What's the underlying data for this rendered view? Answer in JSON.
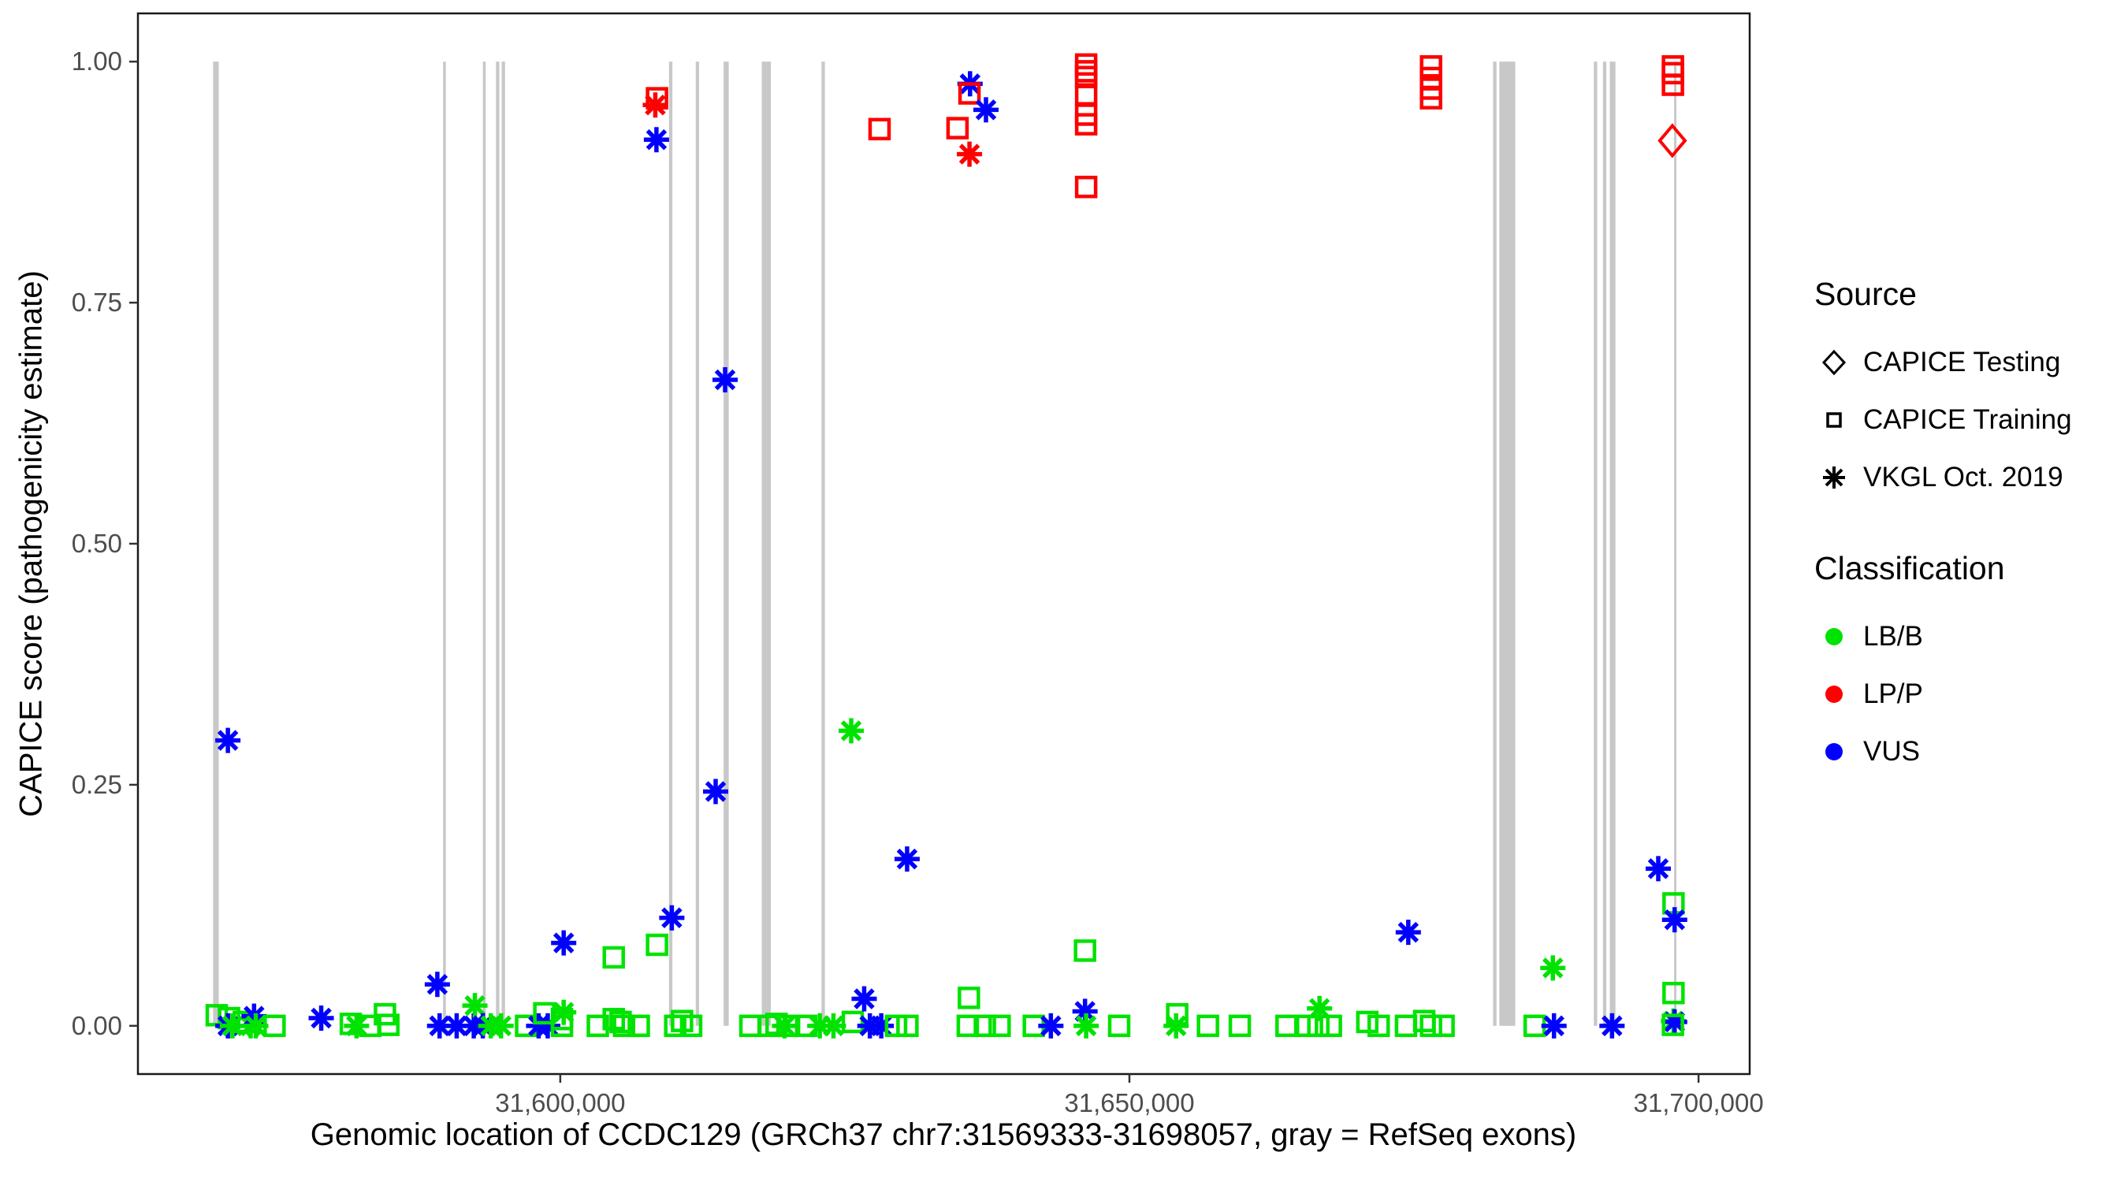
{
  "colors": {
    "lb_b": "#00E300",
    "lp_p": "#FF0000",
    "vus": "#0000FF",
    "exon": "#C8C8C8",
    "panel_border": "#1a1a1a",
    "tick_mark": "#333333",
    "tick_label": "#4D4D4D",
    "legend_key": "#000000"
  },
  "chart_data": {
    "type": "scatter",
    "title": "",
    "xlabel": "Genomic location of CCDC129 (GRCh37 chr7:31569333-31698057, gray = RefSeq exons)",
    "ylabel": "CAPICE score (pathogenicity estimate)",
    "x_domain": [
      31562897,
      31704493
    ],
    "y_domain": [
      -0.05,
      1.05
    ],
    "grid": "off",
    "x_ticks": [
      {
        "value": 31600000,
        "label": "31,600,000"
      },
      {
        "value": 31650000,
        "label": "31,650,000"
      },
      {
        "value": 31700000,
        "label": "31,700,000"
      }
    ],
    "y_ticks": [
      {
        "value": 0.0,
        "label": "0.00"
      },
      {
        "value": 0.25,
        "label": "0.25"
      },
      {
        "value": 0.5,
        "label": "0.50"
      },
      {
        "value": 0.75,
        "label": "0.75"
      },
      {
        "value": 1.0,
        "label": "1.00"
      }
    ],
    "legend": {
      "position": "right",
      "source_title": "Source",
      "source_items": [
        {
          "symbol": "diamond",
          "label": "CAPICE Testing"
        },
        {
          "symbol": "square",
          "label": "CAPICE Training"
        },
        {
          "symbol": "asterisk",
          "label": "VKGL Oct. 2019"
        }
      ],
      "classification_title": "Classification",
      "classification_items": [
        {
          "label": "LB/B",
          "color_key": "lb_b"
        },
        {
          "label": "LP/P",
          "color_key": "lp_p"
        },
        {
          "label": "VUS",
          "color_key": "vus"
        }
      ]
    },
    "exon_note": "gray vertical bars = RefSeq exons, drawn from score 0 to 1",
    "exons": [
      [
        31569500,
        31570000
      ],
      [
        31589700,
        31589950
      ],
      [
        31593200,
        31593450
      ],
      [
        31594350,
        31594650
      ],
      [
        31594850,
        31595150
      ],
      [
        31609550,
        31609850
      ],
      [
        31611900,
        31612200
      ],
      [
        31614350,
        31614800
      ],
      [
        31617700,
        31618500
      ],
      [
        31622950,
        31623250
      ],
      [
        31681950,
        31682250
      ],
      [
        31682500,
        31683900
      ],
      [
        31690800,
        31691100
      ],
      [
        31691600,
        31691900
      ],
      [
        31692200,
        31692700
      ],
      [
        31697850,
        31698057
      ]
    ],
    "point_fields": [
      "genomic_position",
      "capice_score",
      "source_code",
      "classification_code"
    ],
    "source_codes": {
      "T": "CAPICE Testing",
      "R": "CAPICE Training",
      "V": "VKGL Oct. 2019"
    },
    "class_codes": {
      "B": "LB/B",
      "P": "LP/P",
      "U": "VUS"
    },
    "marker_shapes": {
      "T": "open-diamond",
      "R": "open-square",
      "V": "asterisk"
    },
    "points": [
      [
        31608500,
        0.962,
        "R",
        "P"
      ],
      [
        31608350,
        0.955,
        "V",
        "P"
      ],
      [
        31608450,
        0.919,
        "V",
        "U"
      ],
      [
        31628050,
        0.93,
        "R",
        "P"
      ],
      [
        31634900,
        0.931,
        "R",
        "P"
      ],
      [
        31636000,
        0.977,
        "V",
        "U"
      ],
      [
        31635950,
        0.967,
        "R",
        "P"
      ],
      [
        31637400,
        0.95,
        "V",
        "U"
      ],
      [
        31635950,
        0.904,
        "V",
        "P"
      ],
      [
        31646200,
        0.997,
        "R",
        "P"
      ],
      [
        31646200,
        0.99,
        "R",
        "P"
      ],
      [
        31646200,
        0.984,
        "R",
        "P"
      ],
      [
        31646200,
        0.966,
        "R",
        "P"
      ],
      [
        31646200,
        0.945,
        "R",
        "P"
      ],
      [
        31646200,
        0.935,
        "R",
        "P"
      ],
      [
        31646200,
        0.87,
        "R",
        "P"
      ],
      [
        31676500,
        0.995,
        "R",
        "P"
      ],
      [
        31676500,
        0.983,
        "R",
        "P"
      ],
      [
        31676500,
        0.972,
        "R",
        "P"
      ],
      [
        31676500,
        0.962,
        "R",
        "P"
      ],
      [
        31697750,
        0.995,
        "R",
        "P"
      ],
      [
        31697750,
        0.988,
        "R",
        "P"
      ],
      [
        31697750,
        0.976,
        "R",
        "P"
      ],
      [
        31697700,
        0.918,
        "T",
        "P"
      ],
      [
        31570800,
        0.296,
        "V",
        "U"
      ],
      [
        31614480,
        0.67,
        "V",
        "U"
      ],
      [
        31613650,
        0.243,
        "V",
        "U"
      ],
      [
        31625560,
        0.306,
        "V",
        "B"
      ],
      [
        31630470,
        0.173,
        "V",
        "U"
      ],
      [
        31674500,
        0.097,
        "V",
        "U"
      ],
      [
        31687200,
        0.06,
        "V",
        "B"
      ],
      [
        31696460,
        0.163,
        "V",
        "U"
      ],
      [
        31697800,
        0.127,
        "R",
        "B"
      ],
      [
        31697900,
        0.11,
        "V",
        "U"
      ],
      [
        31697800,
        0.034,
        "R",
        "B"
      ],
      [
        31697800,
        0.005,
        "V",
        "B"
      ],
      [
        31697900,
        0.004,
        "V",
        "U"
      ],
      [
        31697750,
        0.001,
        "R",
        "B"
      ],
      [
        31569820,
        0.011,
        "R",
        "B"
      ],
      [
        31570900,
        0.008,
        "R",
        "B"
      ],
      [
        31570800,
        0.0,
        "V",
        "U"
      ],
      [
        31571200,
        0.0,
        "V",
        "B"
      ],
      [
        31572200,
        0.004,
        "R",
        "B"
      ],
      [
        31572800,
        0.0,
        "V",
        "B"
      ],
      [
        31573100,
        0.01,
        "V",
        "U"
      ],
      [
        31573250,
        0.0,
        "V",
        "B"
      ],
      [
        31574900,
        0.0,
        "R",
        "B"
      ],
      [
        31579000,
        0.008,
        "V",
        "U"
      ],
      [
        31581600,
        0.002,
        "R",
        "B"
      ],
      [
        31582100,
        0.0,
        "V",
        "B"
      ],
      [
        31583300,
        0.0,
        "R",
        "B"
      ],
      [
        31584600,
        0.012,
        "R",
        "B"
      ],
      [
        31584900,
        0.001,
        "R",
        "B"
      ],
      [
        31589200,
        0.043,
        "V",
        "U"
      ],
      [
        31589400,
        0.0,
        "V",
        "U"
      ],
      [
        31590900,
        0.0,
        "V",
        "U"
      ],
      [
        31592400,
        0.0,
        "V",
        "U"
      ],
      [
        31592500,
        0.021,
        "V",
        "B"
      ],
      [
        31593200,
        0.0,
        "V",
        "U"
      ],
      [
        31593900,
        0.0,
        "V",
        "B"
      ],
      [
        31594800,
        0.0,
        "V",
        "B"
      ],
      [
        31597000,
        0.0,
        "R",
        "B"
      ],
      [
        31598100,
        0.0,
        "V",
        "U"
      ],
      [
        31598900,
        0.0,
        "V",
        "U"
      ],
      [
        31598600,
        0.013,
        "R",
        "B"
      ],
      [
        31600300,
        0.086,
        "V",
        "U"
      ],
      [
        31600300,
        0.014,
        "V",
        "B"
      ],
      [
        31600150,
        0.007,
        "R",
        "B"
      ],
      [
        31600150,
        0.0,
        "R",
        "B"
      ],
      [
        31603300,
        0.0,
        "R",
        "B"
      ],
      [
        31604700,
        0.071,
        "R",
        "B"
      ],
      [
        31604700,
        0.007,
        "R",
        "B"
      ],
      [
        31605300,
        0.004,
        "R",
        "B"
      ],
      [
        31605600,
        0.0,
        "R",
        "B"
      ],
      [
        31606900,
        0.0,
        "R",
        "B"
      ],
      [
        31608500,
        0.084,
        "R",
        "B"
      ],
      [
        31609800,
        0.112,
        "V",
        "U"
      ],
      [
        31610100,
        0.0,
        "R",
        "B"
      ],
      [
        31610700,
        0.005,
        "R",
        "B"
      ],
      [
        31611500,
        0.0,
        "R",
        "B"
      ],
      [
        31616700,
        0.0,
        "R",
        "B"
      ],
      [
        31618300,
        0.0,
        "R",
        "B"
      ],
      [
        31619000,
        0.002,
        "R",
        "B"
      ],
      [
        31619700,
        0.0,
        "V",
        "B"
      ],
      [
        31620100,
        0.0,
        "R",
        "B"
      ],
      [
        31621600,
        0.0,
        "R",
        "B"
      ],
      [
        31622800,
        0.0,
        "V",
        "B"
      ],
      [
        31624000,
        0.0,
        "V",
        "B"
      ],
      [
        31625700,
        0.004,
        "R",
        "B"
      ],
      [
        31626700,
        0.028,
        "V",
        "U"
      ],
      [
        31627200,
        0.0,
        "V",
        "U"
      ],
      [
        31628200,
        0.0,
        "V",
        "U"
      ],
      [
        31629500,
        0.0,
        "R",
        "B"
      ],
      [
        31630500,
        0.0,
        "R",
        "B"
      ],
      [
        31635900,
        0.029,
        "R",
        "B"
      ],
      [
        31635800,
        0.0,
        "R",
        "B"
      ],
      [
        31637300,
        0.0,
        "R",
        "B"
      ],
      [
        31638600,
        0.0,
        "R",
        "B"
      ],
      [
        31641600,
        0.0,
        "R",
        "B"
      ],
      [
        31643100,
        0.0,
        "V",
        "U"
      ],
      [
        31646100,
        0.078,
        "R",
        "B"
      ],
      [
        31646100,
        0.015,
        "V",
        "U"
      ],
      [
        31646200,
        0.0,
        "V",
        "B"
      ],
      [
        31649100,
        0.0,
        "R",
        "B"
      ],
      [
        31654200,
        0.012,
        "R",
        "B"
      ],
      [
        31654100,
        0.0,
        "V",
        "B"
      ],
      [
        31656900,
        0.0,
        "R",
        "B"
      ],
      [
        31659700,
        0.0,
        "R",
        "B"
      ],
      [
        31663800,
        0.0,
        "R",
        "B"
      ],
      [
        31665600,
        0.0,
        "R",
        "B"
      ],
      [
        31666600,
        0.0,
        "R",
        "B"
      ],
      [
        31667700,
        0.0,
        "R",
        "B"
      ],
      [
        31666700,
        0.018,
        "V",
        "B"
      ],
      [
        31670900,
        0.004,
        "R",
        "B"
      ],
      [
        31671900,
        0.0,
        "R",
        "B"
      ],
      [
        31674300,
        0.0,
        "R",
        "B"
      ],
      [
        31675900,
        0.005,
        "R",
        "B"
      ],
      [
        31676500,
        0.0,
        "R",
        "B"
      ],
      [
        31677600,
        0.0,
        "R",
        "B"
      ],
      [
        31685600,
        0.0,
        "R",
        "B"
      ],
      [
        31687300,
        0.0,
        "V",
        "U"
      ],
      [
        31692400,
        0.0,
        "V",
        "U"
      ]
    ]
  }
}
